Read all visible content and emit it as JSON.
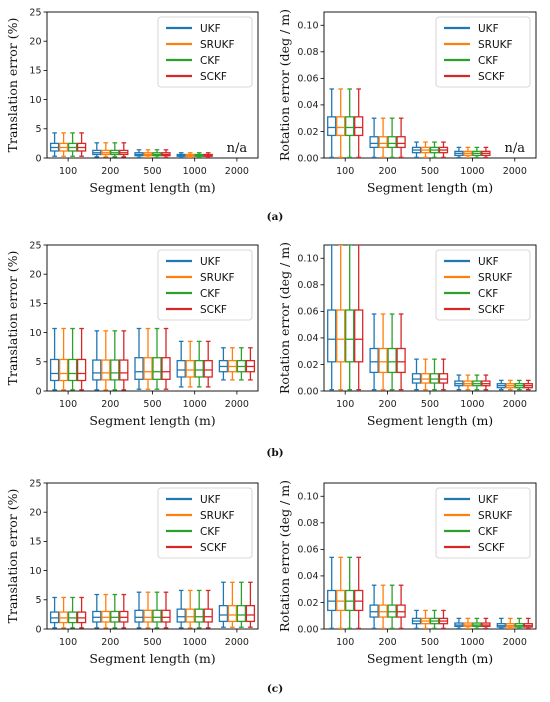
{
  "colors": {
    "UKF": "#1f77b4",
    "SRUKF": "#ff7f0e",
    "CKF": "#2ca02c",
    "SCKF": "#d62728"
  },
  "panels": [
    {
      "caption": "(a)"
    },
    {
      "caption": "(b)"
    },
    {
      "caption": "(c)"
    }
  ],
  "chart_data": [
    {
      "type": "boxplot",
      "panel": "(a)",
      "side": "left",
      "xlabel": "Segment length (m)",
      "ylabel": "Translation error (%)",
      "categories": [
        "100",
        "200",
        "500",
        "1000",
        "2000"
      ],
      "ylim": [
        0,
        25
      ],
      "yticks": [
        0,
        5,
        10,
        15,
        20,
        25
      ],
      "ytick_labels": [
        "0",
        "5",
        "10",
        "15",
        "20",
        "25"
      ],
      "legend": [
        "UKF",
        "SRUKF",
        "CKF",
        "SCKF"
      ],
      "legend_position": "top-right",
      "annotation": {
        "category": "2000",
        "text": "n/a"
      },
      "stats": [
        {
          "category": "100",
          "whislo": 0.3,
          "q1": 1.2,
          "med": 1.8,
          "q3": 2.5,
          "whishi": 4.3
        },
        {
          "category": "200",
          "whislo": 0.2,
          "q1": 0.6,
          "med": 0.9,
          "q3": 1.3,
          "whishi": 2.6
        },
        {
          "category": "500",
          "whislo": 0.1,
          "q1": 0.4,
          "med": 0.6,
          "q3": 0.9,
          "whishi": 1.4
        },
        {
          "category": "1000",
          "whislo": 0.1,
          "q1": 0.3,
          "med": 0.4,
          "q3": 0.6,
          "whishi": 0.9
        }
      ]
    },
    {
      "type": "boxplot",
      "panel": "(a)",
      "side": "right",
      "xlabel": "Segment length (m)",
      "ylabel": "Rotation error (deg / m)",
      "categories": [
        "100",
        "200",
        "500",
        "1000",
        "2000"
      ],
      "ylim": [
        0,
        0.11
      ],
      "yticks": [
        0,
        0.02,
        0.04,
        0.06,
        0.08,
        0.1
      ],
      "ytick_labels": [
        "0.00",
        "0.02",
        "0.04",
        "0.06",
        "0.08",
        "0.10"
      ],
      "legend": [
        "UKF",
        "SRUKF",
        "CKF",
        "SCKF"
      ],
      "legend_position": "top-right",
      "annotation": {
        "category": "2000",
        "text": "n/a"
      },
      "stats": [
        {
          "category": "100",
          "whislo": 0.0005,
          "q1": 0.017,
          "med": 0.023,
          "q3": 0.031,
          "whishi": 0.052
        },
        {
          "category": "200",
          "whislo": 0.0005,
          "q1": 0.008,
          "med": 0.011,
          "q3": 0.016,
          "whishi": 0.03
        },
        {
          "category": "500",
          "whislo": 0.0005,
          "q1": 0.004,
          "med": 0.006,
          "q3": 0.008,
          "whishi": 0.012
        },
        {
          "category": "1000",
          "whislo": 0.0005,
          "q1": 0.002,
          "med": 0.0035,
          "q3": 0.005,
          "whishi": 0.008
        }
      ]
    },
    {
      "type": "boxplot",
      "panel": "(b)",
      "side": "left",
      "xlabel": "Segment length (m)",
      "ylabel": "Translation error (%)",
      "categories": [
        "100",
        "200",
        "500",
        "1000",
        "2000"
      ],
      "ylim": [
        0,
        25
      ],
      "yticks": [
        0,
        5,
        10,
        15,
        20,
        25
      ],
      "ytick_labels": [
        "0",
        "5",
        "10",
        "15",
        "20",
        "25"
      ],
      "legend": [
        "UKF",
        "SRUKF",
        "CKF",
        "SCKF"
      ],
      "legend_position": "top-right",
      "stats": [
        {
          "category": "100",
          "whislo": 0.2,
          "q1": 1.8,
          "med": 3.0,
          "q3": 5.4,
          "whishi": 10.7
        },
        {
          "category": "200",
          "whislo": 0.2,
          "q1": 1.9,
          "med": 3.1,
          "q3": 5.3,
          "whishi": 10.3
        },
        {
          "category": "500",
          "whislo": 0.3,
          "q1": 2.0,
          "med": 3.3,
          "q3": 5.7,
          "whishi": 10.7
        },
        {
          "category": "1000",
          "whislo": 0.7,
          "q1": 2.4,
          "med": 3.6,
          "q3": 5.2,
          "whishi": 8.5
        },
        {
          "category": "2000",
          "whislo": 1.9,
          "q1": 3.3,
          "med": 4.2,
          "q3": 5.2,
          "whishi": 7.4
        }
      ]
    },
    {
      "type": "boxplot",
      "panel": "(b)",
      "side": "right",
      "xlabel": "Segment length (m)",
      "ylabel": "Rotation error (deg / m)",
      "categories": [
        "100",
        "200",
        "500",
        "1000",
        "2000"
      ],
      "ylim": [
        0,
        0.11
      ],
      "yticks": [
        0,
        0.02,
        0.04,
        0.06,
        0.08,
        0.1
      ],
      "ytick_labels": [
        "0.00",
        "0.02",
        "0.04",
        "0.06",
        "0.08",
        "0.10"
      ],
      "legend": [
        "UKF",
        "SRUKF",
        "CKF",
        "SCKF"
      ],
      "legend_position": "top-right",
      "stats": [
        {
          "category": "100",
          "whislo": 0.001,
          "q1": 0.022,
          "med": 0.039,
          "q3": 0.061,
          "whishi": 0.11
        },
        {
          "category": "200",
          "whislo": 0.001,
          "q1": 0.014,
          "med": 0.022,
          "q3": 0.032,
          "whishi": 0.058
        },
        {
          "category": "500",
          "whislo": 0.001,
          "q1": 0.006,
          "med": 0.009,
          "q3": 0.013,
          "whishi": 0.024
        },
        {
          "category": "1000",
          "whislo": 0.001,
          "q1": 0.004,
          "med": 0.0055,
          "q3": 0.0075,
          "whishi": 0.012
        },
        {
          "category": "2000",
          "whislo": 0.001,
          "q1": 0.0025,
          "med": 0.004,
          "q3": 0.0055,
          "whishi": 0.008
        }
      ]
    },
    {
      "type": "boxplot",
      "panel": "(c)",
      "side": "left",
      "xlabel": "Segment length (m)",
      "ylabel": "Translation error (%)",
      "categories": [
        "100",
        "200",
        "500",
        "1000",
        "2000"
      ],
      "ylim": [
        0,
        25
      ],
      "yticks": [
        0,
        5,
        10,
        15,
        20,
        25
      ],
      "ytick_labels": [
        "0",
        "5",
        "10",
        "15",
        "20",
        "25"
      ],
      "legend": [
        "UKF",
        "SRUKF",
        "CKF",
        "SCKF"
      ],
      "legend_position": "top-right",
      "stats": [
        {
          "category": "100",
          "whislo": 0.2,
          "q1": 1.1,
          "med": 1.9,
          "q3": 2.9,
          "whishi": 5.4
        },
        {
          "category": "200",
          "whislo": 0.2,
          "q1": 1.2,
          "med": 2.0,
          "q3": 3.0,
          "whishi": 5.9
        },
        {
          "category": "500",
          "whislo": 0.2,
          "q1": 1.2,
          "med": 2.0,
          "q3": 3.2,
          "whishi": 6.3
        },
        {
          "category": "1000",
          "whislo": 0.2,
          "q1": 1.2,
          "med": 2.1,
          "q3": 3.4,
          "whishi": 6.6
        },
        {
          "category": "2000",
          "whislo": 0.3,
          "q1": 1.3,
          "med": 2.4,
          "q3": 4.0,
          "whishi": 8.0
        }
      ]
    },
    {
      "type": "boxplot",
      "panel": "(c)",
      "side": "right",
      "xlabel": "Segment length (m)",
      "ylabel": "Rotation error (deg / m)",
      "categories": [
        "100",
        "200",
        "500",
        "1000",
        "2000"
      ],
      "ylim": [
        0,
        0.11
      ],
      "yticks": [
        0,
        0.02,
        0.04,
        0.06,
        0.08,
        0.1
      ],
      "ytick_labels": [
        "0.00",
        "0.02",
        "0.04",
        "0.06",
        "0.08",
        "0.10"
      ],
      "legend": [
        "UKF",
        "SRUKF",
        "CKF",
        "SCKF"
      ],
      "legend_position": "top-right",
      "stats": [
        {
          "category": "100",
          "whislo": 0.0005,
          "q1": 0.014,
          "med": 0.021,
          "q3": 0.029,
          "whishi": 0.054
        },
        {
          "category": "200",
          "whislo": 0.0005,
          "q1": 0.009,
          "med": 0.013,
          "q3": 0.018,
          "whishi": 0.033
        },
        {
          "category": "500",
          "whislo": 0.0005,
          "q1": 0.004,
          "med": 0.006,
          "q3": 0.008,
          "whishi": 0.014
        },
        {
          "category": "1000",
          "whislo": 0.0005,
          "q1": 0.002,
          "med": 0.003,
          "q3": 0.0045,
          "whishi": 0.008
        },
        {
          "category": "2000",
          "whislo": 0.0005,
          "q1": 0.0015,
          "med": 0.0025,
          "q3": 0.004,
          "whishi": 0.008
        }
      ]
    }
  ]
}
